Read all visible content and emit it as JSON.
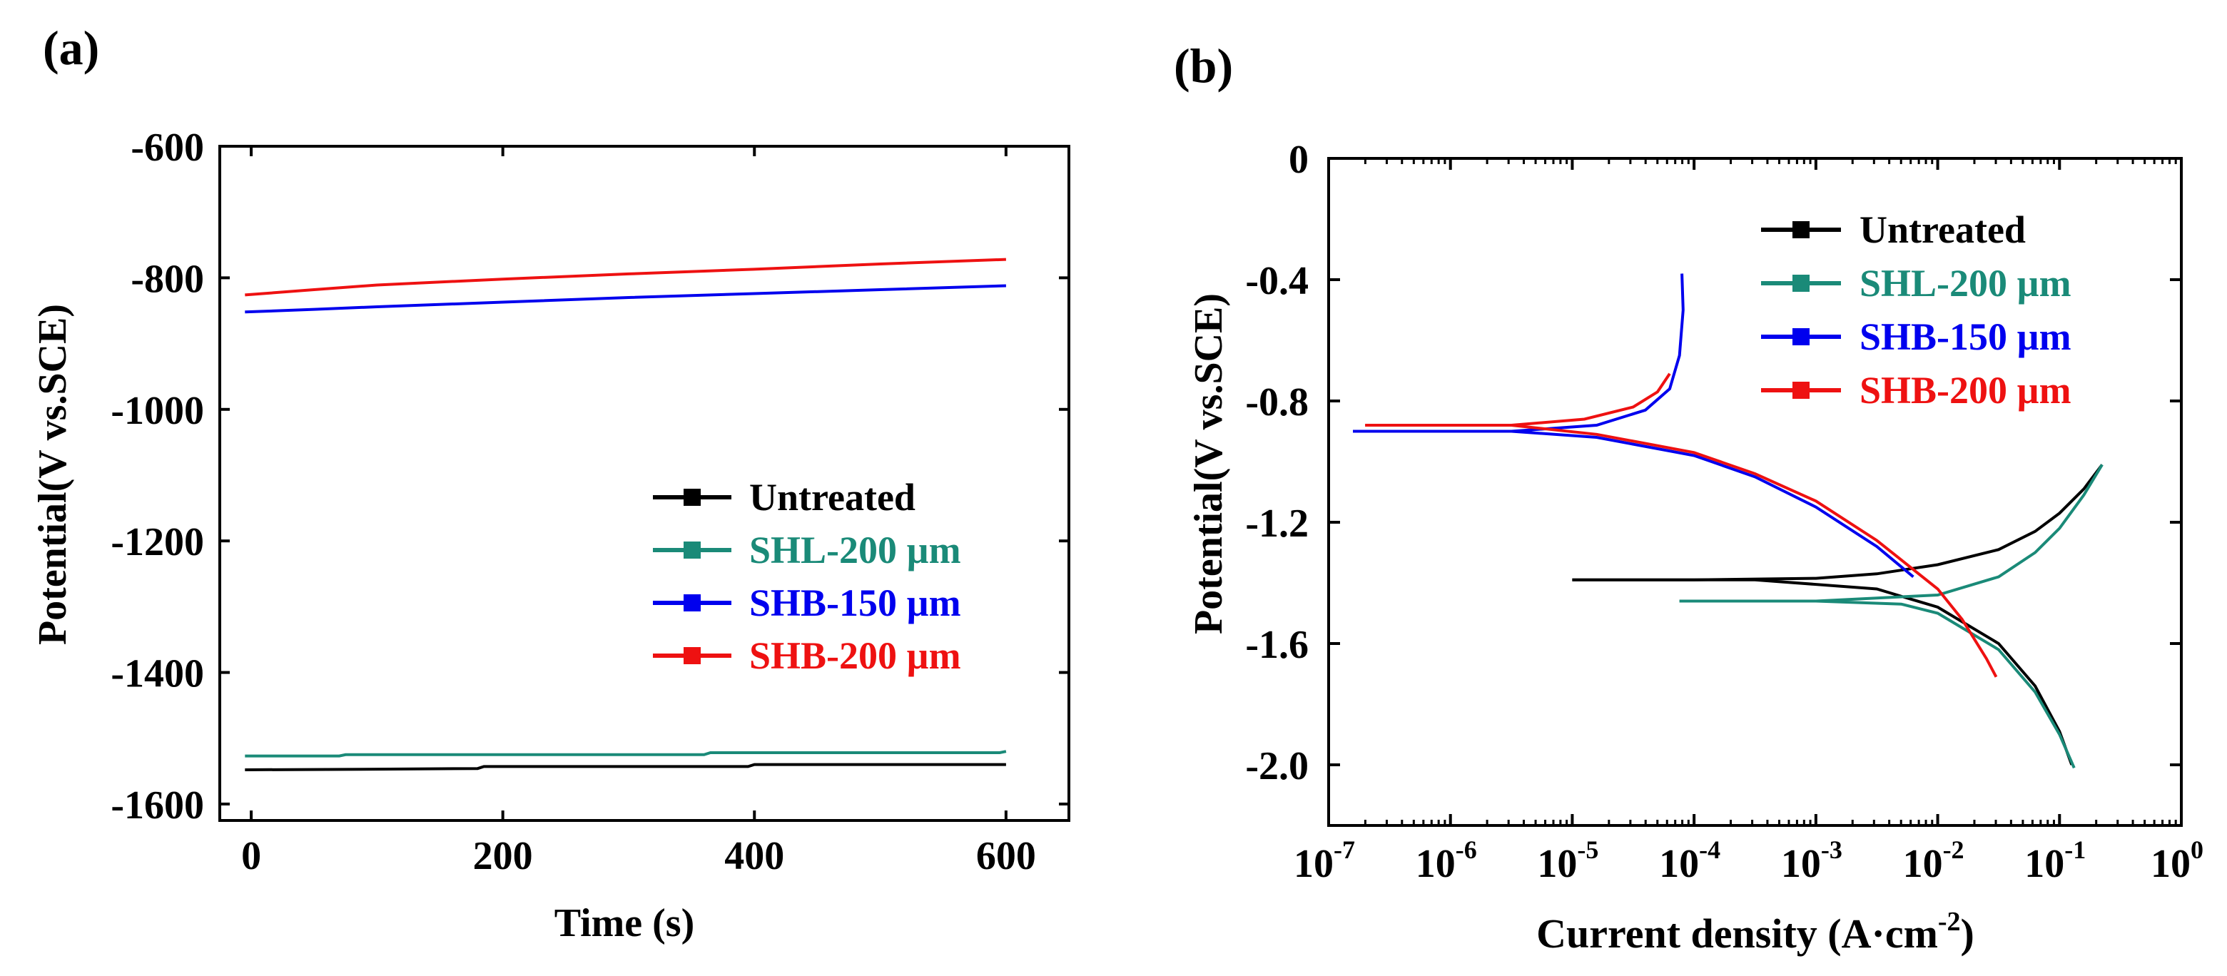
{
  "panels": {
    "a": {
      "label": "(a)"
    },
    "b": {
      "label": "(b)"
    }
  },
  "legend_marker": "square-line-marker",
  "chart_data": [
    {
      "id": "a",
      "type": "line",
      "title": "",
      "xlabel": "Time (s)",
      "ylabel": "Potential(V vs.SCE)",
      "xlim": [
        -25,
        650
      ],
      "ylim": [
        -1625,
        -600
      ],
      "x_ticks": [
        0,
        200,
        400,
        600
      ],
      "x_tick_labels": [
        "0",
        "200",
        "400",
        "600"
      ],
      "y_ticks": [
        -600,
        -800,
        -1000,
        -1200,
        -1400,
        -1600
      ],
      "y_tick_labels": [
        "-600",
        "-800",
        "-1000",
        "-1200",
        "-1400",
        "-1600"
      ],
      "grid": false,
      "legend_position": "center-right",
      "series": [
        {
          "name": "Untreated",
          "color": "#000000",
          "x": [
            -5,
            100,
            180,
            185,
            300,
            395,
            400,
            500,
            600
          ],
          "y": [
            -1548,
            -1547,
            -1546,
            -1543,
            -1543,
            -1543,
            -1540,
            -1540,
            -1540
          ]
        },
        {
          "name": "SHL-200 µm",
          "color": "#1a8a78",
          "x": [
            -5,
            70,
            75,
            200,
            360,
            365,
            500,
            595,
            600
          ],
          "y": [
            -1527,
            -1527,
            -1525,
            -1525,
            -1525,
            -1522,
            -1522,
            -1522,
            -1520
          ]
        },
        {
          "name": "SHB-150 µm",
          "color": "#0000ee",
          "x": [
            -5,
            50,
            100,
            200,
            300,
            400,
            500,
            600
          ],
          "y": [
            -852,
            -848,
            -844,
            -837,
            -830,
            -824,
            -818,
            -812
          ]
        },
        {
          "name": "SHB-200 µm",
          "color": "#ee1111",
          "x": [
            -5,
            50,
            100,
            200,
            300,
            400,
            500,
            600
          ],
          "y": [
            -826,
            -818,
            -811,
            -802,
            -794,
            -787,
            -779,
            -772
          ]
        }
      ]
    },
    {
      "id": "b",
      "type": "line",
      "title": "",
      "xlabel": "Current density (A·cm",
      "xlabel_superscript": "-2",
      "xlabel_suffix": ")",
      "ylabel": "Potential(V vs.SCE)",
      "x_scale": "log",
      "xlim_log10": [
        -7,
        0
      ],
      "ylim": [
        -2.2,
        0
      ],
      "x_ticks_log10": [
        -7,
        -6,
        -5,
        -4,
        -3,
        -2,
        -1,
        0
      ],
      "x_tick_base": "10",
      "x_tick_exponents": [
        "-7",
        "-6",
        "-5",
        "-4",
        "-3",
        "-2",
        "-1",
        "0"
      ],
      "y_ticks": [
        0,
        -0.4,
        -0.8,
        -1.2,
        -1.6,
        -2.0
      ],
      "y_tick_labels": [
        "0",
        "-0.4",
        "-0.8",
        "-1.2",
        "-1.6",
        "-2.0"
      ],
      "grid": false,
      "legend_position": "top-right",
      "series": [
        {
          "name": "Untreated",
          "color": "#000000",
          "branches": [
            {
              "log_i": [
                -5.0,
                -4.0,
                -3.0,
                -2.5,
                -2.0,
                -1.5,
                -1.2,
                -1.0,
                -0.8,
                -0.65
              ],
              "E": [
                -1.39,
                -1.39,
                -1.385,
                -1.37,
                -1.34,
                -1.29,
                -1.23,
                -1.17,
                -1.09,
                -1.01
              ]
            },
            {
              "log_i": [
                -5.0,
                -3.5,
                -2.5,
                -2.0,
                -1.5,
                -1.2,
                -1.0,
                -0.9
              ],
              "E": [
                -1.39,
                -1.39,
                -1.42,
                -1.48,
                -1.6,
                -1.74,
                -1.89,
                -2.0
              ]
            }
          ]
        },
        {
          "name": "SHL-200 µm",
          "color": "#1a8a78",
          "branches": [
            {
              "log_i": [
                -4.12,
                -3.0,
                -2.0,
                -1.5,
                -1.2,
                -1.0,
                -0.8,
                -0.65
              ],
              "E": [
                -1.46,
                -1.46,
                -1.44,
                -1.38,
                -1.3,
                -1.22,
                -1.11,
                -1.01
              ]
            },
            {
              "log_i": [
                -4.12,
                -3.0,
                -2.3,
                -2.0,
                -1.5,
                -1.2,
                -1.0,
                -0.88
              ],
              "E": [
                -1.46,
                -1.46,
                -1.47,
                -1.5,
                -1.62,
                -1.76,
                -1.9,
                -2.01
              ]
            }
          ]
        },
        {
          "name": "SHB-150 µm",
          "color": "#0000ee",
          "branches": [
            {
              "log_i": [
                -6.8,
                -5.5,
                -4.8,
                -4.4,
                -4.2,
                -4.12,
                -4.09,
                -4.1
              ],
              "E": [
                -0.9,
                -0.9,
                -0.88,
                -0.83,
                -0.76,
                -0.65,
                -0.5,
                -0.38
              ]
            },
            {
              "log_i": [
                -6.8,
                -5.5,
                -4.8,
                -4.0,
                -3.5,
                -3.0,
                -2.5,
                -2.2
              ],
              "E": [
                -0.9,
                -0.9,
                -0.92,
                -0.98,
                -1.05,
                -1.15,
                -1.28,
                -1.38
              ]
            }
          ]
        },
        {
          "name": "SHB-200 µm",
          "color": "#ee1111",
          "branches": [
            {
              "log_i": [
                -6.7,
                -5.5,
                -4.9,
                -4.5,
                -4.3,
                -4.2
              ],
              "E": [
                -0.88,
                -0.88,
                -0.86,
                -0.82,
                -0.77,
                -0.71
              ]
            },
            {
              "log_i": [
                -6.7,
                -5.5,
                -4.8,
                -4.0,
                -3.5,
                -3.0,
                -2.5,
                -2.0,
                -1.8,
                -1.6,
                -1.52
              ],
              "E": [
                -0.88,
                -0.88,
                -0.91,
                -0.97,
                -1.04,
                -1.13,
                -1.26,
                -1.42,
                -1.52,
                -1.65,
                -1.71
              ]
            }
          ]
        }
      ]
    }
  ]
}
